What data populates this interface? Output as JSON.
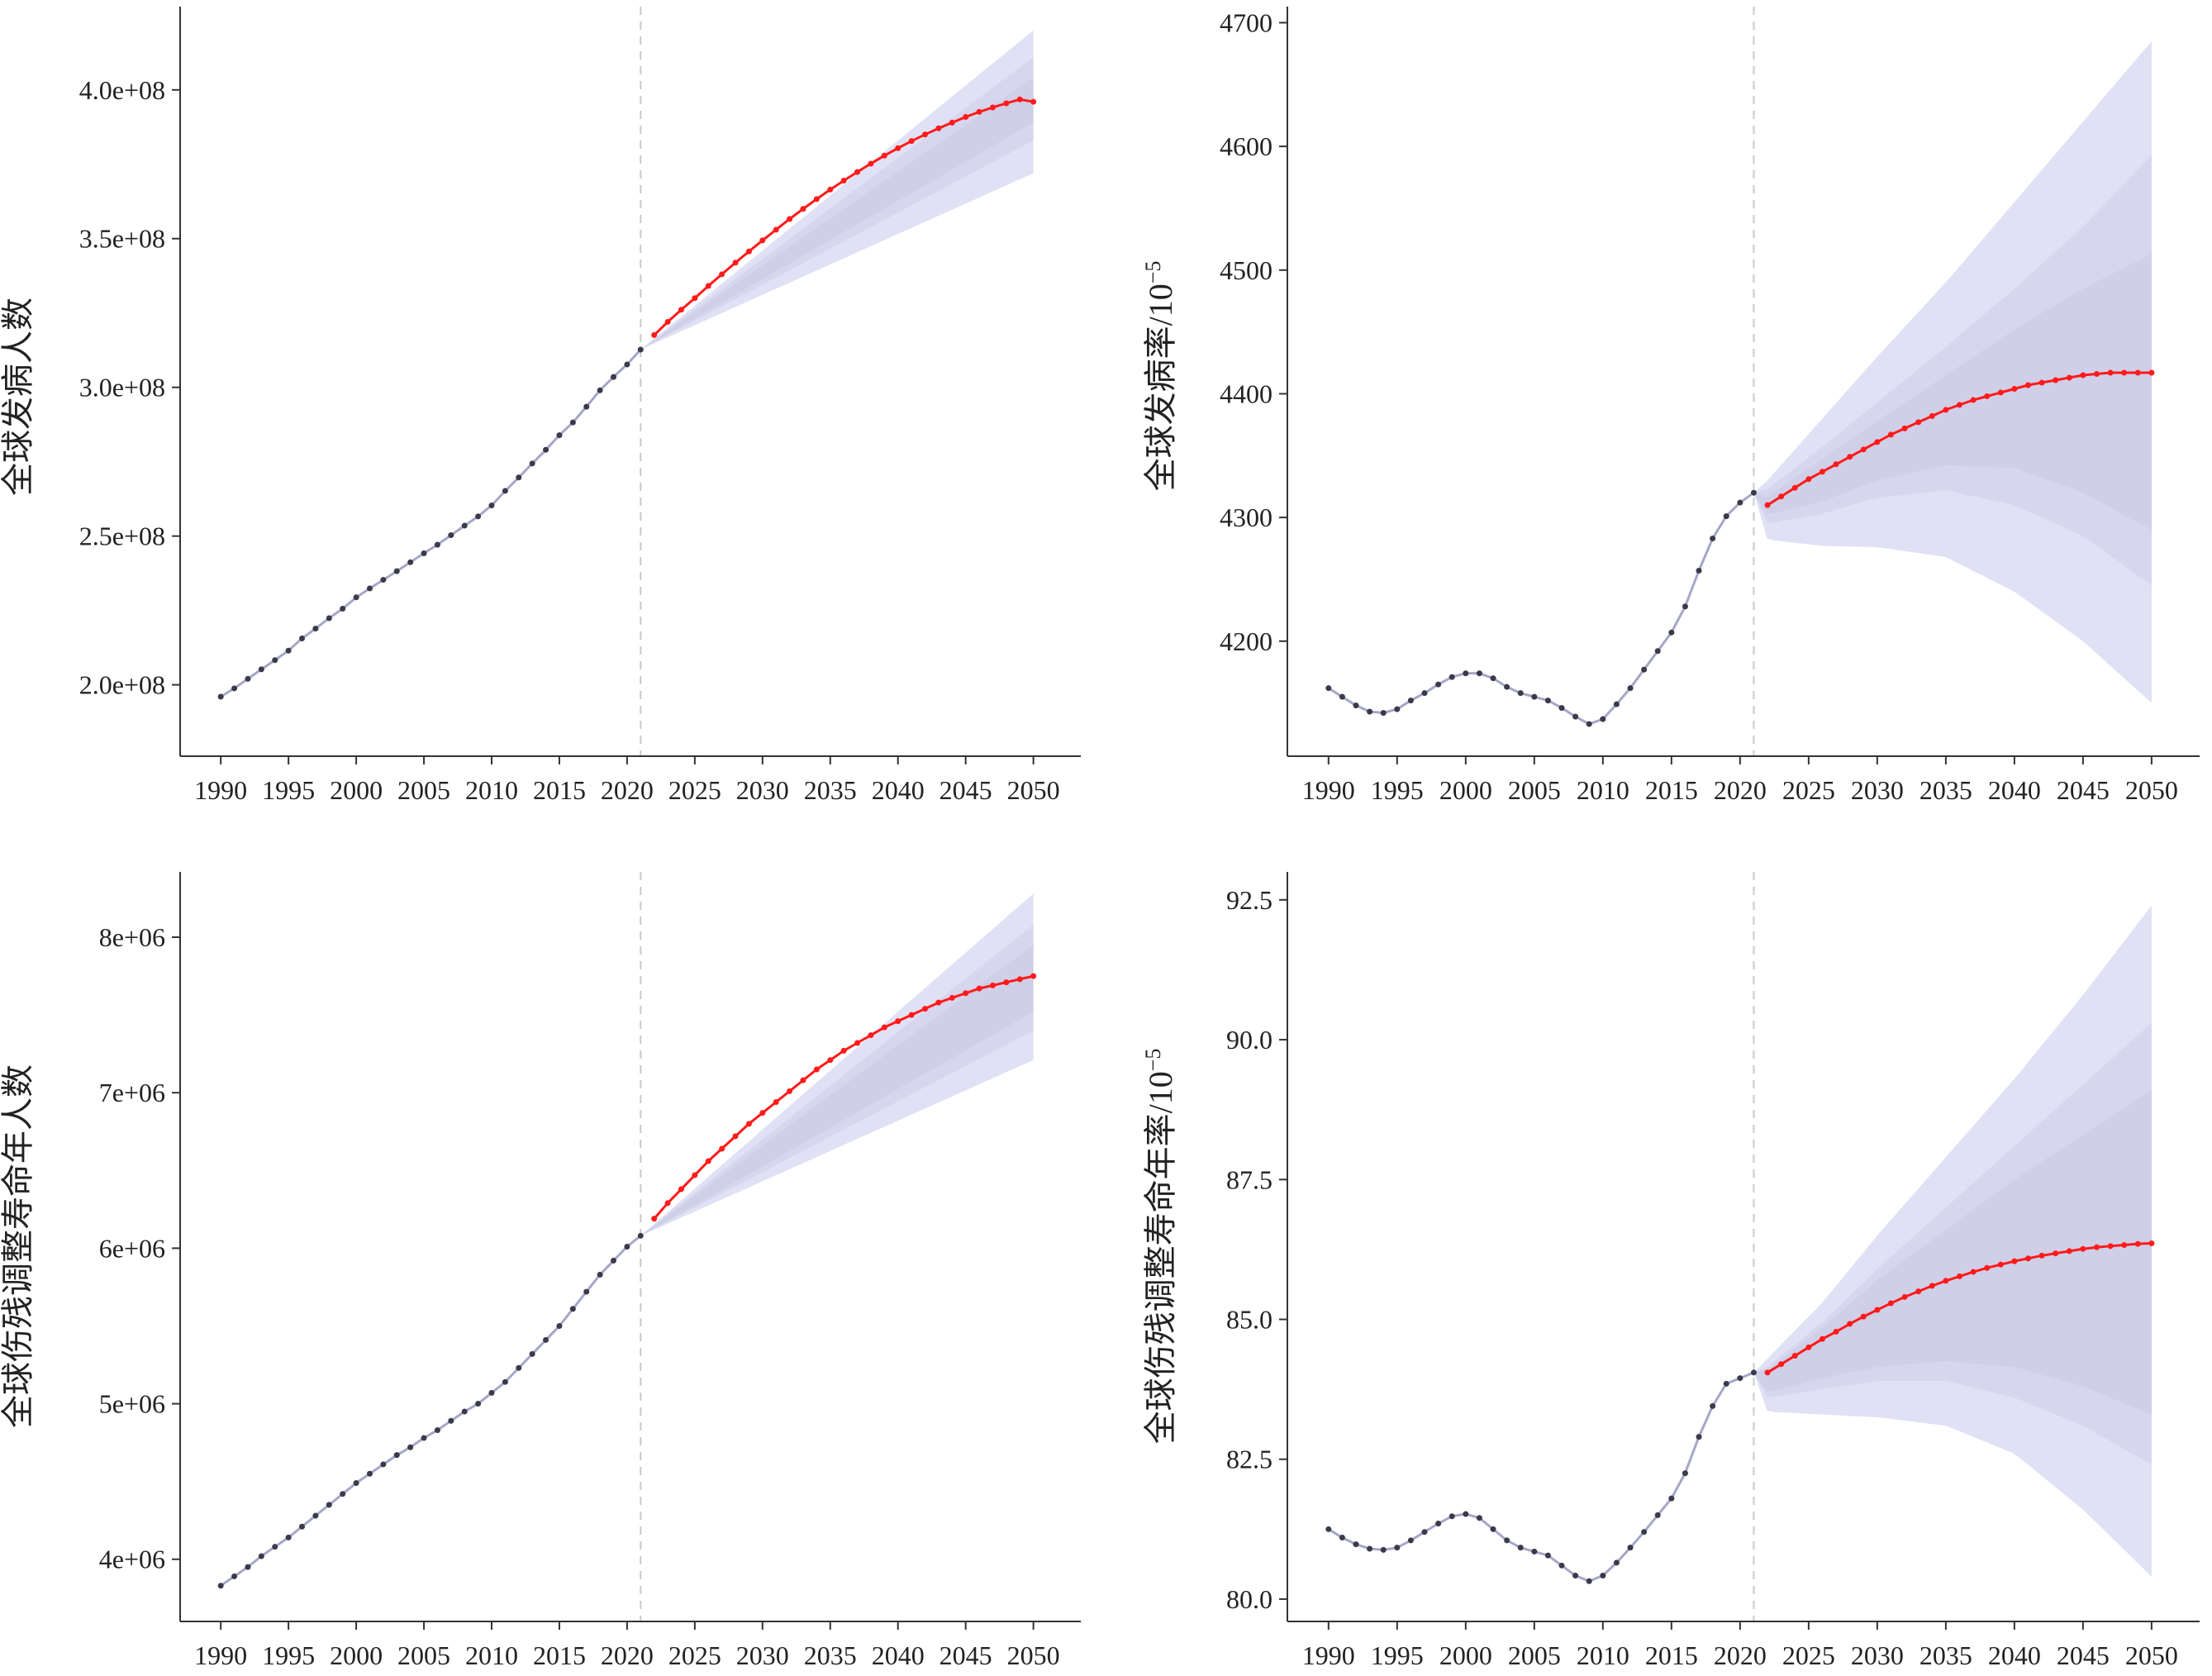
{
  "colors": {
    "history_point": "#3a3a4a",
    "history_line": "#a6a6c8",
    "prediction_point": "#ff1a1a",
    "prediction_line": "#ff1a1a",
    "band_outer": "#e1e1f5",
    "band_middle": "#d6d6ee",
    "band_inner": "#cfcfe8",
    "divider": "#c8c8d0"
  },
  "chart_data": [
    {
      "type": "line",
      "ylabel": "全球发病人数",
      "ylabel_unit": "",
      "x_ticks": [
        1990,
        1995,
        2000,
        2005,
        2010,
        2015,
        2020,
        2025,
        2030,
        2035,
        2040,
        2045,
        2050
      ],
      "xlim": [
        1987,
        2053.5
      ],
      "ylim": [
        176000000,
        428000000
      ],
      "y_ticks": [
        200000000,
        250000000,
        300000000,
        350000000,
        400000000
      ],
      "y_tick_labels": [
        "2.0e+08",
        "2.5e+08",
        "3.0e+08",
        "3.5e+08",
        "4.0e+08"
      ],
      "divider_x": 2021,
      "series": [
        {
          "role": "observed",
          "x": [
            1990,
            1991,
            1992,
            1993,
            1994,
            1995,
            1996,
            1997,
            1998,
            1999,
            2000,
            2001,
            2002,
            2003,
            2004,
            2005,
            2006,
            2007,
            2008,
            2009,
            2010,
            2011,
            2012,
            2013,
            2014,
            2015,
            2016,
            2017,
            2018,
            2019,
            2020,
            2021
          ],
          "values": [
            196000000,
            198800000,
            202000000,
            205200000,
            208300000,
            211500000,
            215600000,
            218900000,
            222400000,
            225600000,
            229400000,
            232400000,
            235300000,
            238200000,
            241200000,
            244200000,
            247100000,
            250300000,
            253500000,
            256600000,
            260300000,
            265200000,
            269700000,
            274400000,
            279000000,
            283900000,
            288200000,
            293500000,
            299000000,
            303500000,
            307700000,
            312700000
          ]
        },
        {
          "role": "predicted",
          "x": [
            2022,
            2023,
            2024,
            2025,
            2026,
            2027,
            2028,
            2029,
            2030,
            2031,
            2032,
            2033,
            2034,
            2035,
            2036,
            2037,
            2038,
            2039,
            2040,
            2041,
            2042,
            2043,
            2044,
            2045,
            2046,
            2047,
            2048,
            2049,
            2050
          ],
          "values": [
            317600000,
            322000000,
            326100000,
            330000000,
            334100000,
            338000000,
            341900000,
            345700000,
            349400000,
            353000000,
            356600000,
            360000000,
            363300000,
            366500000,
            369500000,
            372400000,
            375200000,
            377900000,
            380400000,
            382800000,
            385000000,
            387100000,
            389000000,
            390900000,
            392600000,
            394100000,
            395500000,
            396800000,
            396000000
          ],
          "band_x": [
            2021,
            2050
          ],
          "band_outer_upper": [
            312700000,
            420000000
          ],
          "band_outer_lower": [
            312700000,
            372000000
          ],
          "band_middle_upper": [
            312700000,
            411000000
          ],
          "band_middle_lower": [
            312700000,
            383000000
          ],
          "band_inner_upper": [
            312700000,
            404000000
          ],
          "band_inner_lower": [
            312700000,
            389000000
          ]
        }
      ]
    },
    {
      "type": "line",
      "ylabel": "全球发病率/10",
      "ylabel_unit": "−5",
      "x_ticks": [
        1990,
        1995,
        2000,
        2005,
        2010,
        2015,
        2020,
        2025,
        2030,
        2035,
        2040,
        2045,
        2050
      ],
      "xlim": [
        1987,
        2053.5
      ],
      "ylim": [
        4107,
        4713
      ],
      "y_ticks": [
        4200,
        4300,
        4400,
        4500,
        4600,
        4700
      ],
      "y_tick_labels": [
        "4200",
        "4300",
        "4400",
        "4500",
        "4600",
        "4700"
      ],
      "divider_x": 2021,
      "series": [
        {
          "role": "observed",
          "x": [
            1990,
            1991,
            1992,
            1993,
            1994,
            1995,
            1996,
            1997,
            1998,
            1999,
            2000,
            2001,
            2002,
            2003,
            2004,
            2005,
            2006,
            2007,
            2008,
            2009,
            2010,
            2011,
            2012,
            2013,
            2014,
            2015,
            2016,
            2017,
            2018,
            2019,
            2020,
            2021
          ],
          "values": [
            4162,
            4155,
            4148,
            4143,
            4142,
            4145,
            4152,
            4158,
            4165,
            4171,
            4174,
            4174,
            4170,
            4163,
            4158,
            4155,
            4152,
            4146,
            4139,
            4133,
            4137,
            4149,
            4162,
            4177,
            4192,
            4207,
            4228,
            4257,
            4283,
            4301,
            4312,
            4320
          ]
        },
        {
          "role": "predicted",
          "x": [
            2022,
            2023,
            2024,
            2025,
            2026,
            2027,
            2028,
            2029,
            2030,
            2031,
            2032,
            2033,
            2034,
            2035,
            2036,
            2037,
            2038,
            2039,
            2040,
            2041,
            2042,
            2043,
            2044,
            2045,
            2046,
            2047,
            2048,
            2049,
            2050
          ],
          "values": [
            4310,
            4317,
            4324,
            4331,
            4337,
            4343,
            4349,
            4355,
            4361,
            4367,
            4372,
            4377,
            4382,
            4387,
            4391,
            4395,
            4398,
            4401,
            4404,
            4407,
            4409,
            4411,
            4413,
            4415,
            4416,
            4417,
            4417,
            4417,
            4417
          ],
          "band_x": [
            2021,
            2022,
            2026,
            2030,
            2035,
            2040,
            2045,
            2050
          ],
          "band_outer_upper": [
            4320,
            4330,
            4380,
            4430,
            4490,
            4555,
            4620,
            4685
          ],
          "band_outer_lower": [
            4320,
            4282,
            4277,
            4276,
            4268,
            4240,
            4200,
            4150
          ],
          "band_middle_upper": [
            4320,
            4323,
            4357,
            4393,
            4438,
            4485,
            4535,
            4593
          ],
          "band_middle_lower": [
            4320,
            4295,
            4303,
            4316,
            4322,
            4310,
            4285,
            4245
          ],
          "band_inner_upper": [
            4320,
            4317,
            4347,
            4378,
            4415,
            4452,
            4485,
            4513
          ],
          "band_inner_lower": [
            4320,
            4302,
            4313,
            4330,
            4342,
            4340,
            4320,
            4290
          ]
        }
      ]
    },
    {
      "type": "line",
      "ylabel": "全球伤残调整寿命年人数",
      "ylabel_unit": "",
      "x_ticks": [
        1990,
        1995,
        2000,
        2005,
        2010,
        2015,
        2020,
        2025,
        2030,
        2035,
        2040,
        2045,
        2050
      ],
      "xlim": [
        1987,
        2053.5
      ],
      "ylim": [
        3600000,
        8420000
      ],
      "y_ticks": [
        4000000,
        5000000,
        6000000,
        7000000,
        8000000
      ],
      "y_tick_labels": [
        "4e+06",
        "5e+06",
        "6e+06",
        "7e+06",
        "8e+06"
      ],
      "divider_x": 2021,
      "series": [
        {
          "role": "observed",
          "x": [
            1990,
            1991,
            1992,
            1993,
            1994,
            1995,
            1996,
            1997,
            1998,
            1999,
            2000,
            2001,
            2002,
            2003,
            2004,
            2005,
            2006,
            2007,
            2008,
            2009,
            2010,
            2011,
            2012,
            2013,
            2014,
            2015,
            2016,
            2017,
            2018,
            2019,
            2020,
            2021
          ],
          "values": [
            3830000,
            3890000,
            3950000,
            4020000,
            4080000,
            4140000,
            4210000,
            4280000,
            4350000,
            4420000,
            4490000,
            4550000,
            4610000,
            4670000,
            4720000,
            4780000,
            4830000,
            4890000,
            4950000,
            5000000,
            5070000,
            5140000,
            5230000,
            5320000,
            5410000,
            5500000,
            5610000,
            5720000,
            5830000,
            5920000,
            6010000,
            6080000
          ]
        },
        {
          "role": "predicted",
          "x": [
            2022,
            2023,
            2024,
            2025,
            2026,
            2027,
            2028,
            2029,
            2030,
            2031,
            2032,
            2033,
            2034,
            2035,
            2036,
            2037,
            2038,
            2039,
            2040,
            2041,
            2042,
            2043,
            2044,
            2045,
            2046,
            2047,
            2048,
            2049,
            2050
          ],
          "values": [
            6190000,
            6290000,
            6380000,
            6470000,
            6560000,
            6640000,
            6720000,
            6800000,
            6870000,
            6940000,
            7010000,
            7080000,
            7150000,
            7210000,
            7270000,
            7320000,
            7370000,
            7420000,
            7460000,
            7500000,
            7540000,
            7580000,
            7610000,
            7640000,
            7670000,
            7690000,
            7710000,
            7730000,
            7750000
          ],
          "band_x": [
            2021,
            2050
          ],
          "band_outer_upper": [
            6080000,
            8280000
          ],
          "band_outer_lower": [
            6080000,
            7210000
          ],
          "band_middle_upper": [
            6080000,
            8080000
          ],
          "band_middle_lower": [
            6080000,
            7400000
          ],
          "band_inner_upper": [
            6080000,
            7950000
          ],
          "band_inner_lower": [
            6080000,
            7520000
          ]
        }
      ]
    },
    {
      "type": "line",
      "ylabel": "全球伤残调整寿命年率/10",
      "ylabel_unit": "−5",
      "x_ticks": [
        1990,
        1995,
        2000,
        2005,
        2010,
        2015,
        2020,
        2025,
        2030,
        2035,
        2040,
        2045,
        2050
      ],
      "xlim": [
        1987,
        2053.5
      ],
      "ylim": [
        79.6,
        93.0
      ],
      "y_ticks": [
        80.0,
        82.5,
        85.0,
        87.5,
        90.0,
        92.5
      ],
      "y_tick_labels": [
        "80.0",
        "82.5",
        "85.0",
        "87.5",
        "90.0",
        "92.5"
      ],
      "divider_x": 2021,
      "series": [
        {
          "role": "observed",
          "x": [
            1990,
            1991,
            1992,
            1993,
            1994,
            1995,
            1996,
            1997,
            1998,
            1999,
            2000,
            2001,
            2002,
            2003,
            2004,
            2005,
            2006,
            2007,
            2008,
            2009,
            2010,
            2011,
            2012,
            2013,
            2014,
            2015,
            2016,
            2017,
            2018,
            2019,
            2020,
            2021
          ],
          "values": [
            81.25,
            81.1,
            80.98,
            80.9,
            80.88,
            80.92,
            81.05,
            81.2,
            81.35,
            81.48,
            81.52,
            81.45,
            81.25,
            81.05,
            80.92,
            80.85,
            80.78,
            80.6,
            80.42,
            80.32,
            80.42,
            80.65,
            80.92,
            81.2,
            81.5,
            81.8,
            82.25,
            82.9,
            83.45,
            83.85,
            83.95,
            84.05
          ]
        },
        {
          "role": "predicted",
          "x": [
            2022,
            2023,
            2024,
            2025,
            2026,
            2027,
            2028,
            2029,
            2030,
            2031,
            2032,
            2033,
            2034,
            2035,
            2036,
            2037,
            2038,
            2039,
            2040,
            2041,
            2042,
            2043,
            2044,
            2045,
            2046,
            2047,
            2048,
            2049,
            2050
          ],
          "values": [
            84.05,
            84.2,
            84.35,
            84.5,
            84.65,
            84.78,
            84.92,
            85.05,
            85.17,
            85.29,
            85.4,
            85.5,
            85.6,
            85.69,
            85.77,
            85.85,
            85.92,
            85.98,
            86.04,
            86.09,
            86.14,
            86.18,
            86.22,
            86.26,
            86.29,
            86.31,
            86.33,
            86.35,
            86.36
          ],
          "band_x": [
            2021,
            2022,
            2026,
            2030,
            2035,
            2040,
            2045,
            2050
          ],
          "band_outer_upper": [
            84.05,
            84.3,
            85.3,
            86.5,
            87.9,
            89.3,
            90.8,
            92.4
          ],
          "band_outer_lower": [
            84.05,
            83.35,
            83.3,
            83.25,
            83.1,
            82.6,
            81.6,
            80.4
          ],
          "band_middle_upper": [
            84.05,
            84.15,
            84.95,
            85.9,
            87.0,
            88.1,
            89.2,
            90.3
          ],
          "band_middle_lower": [
            84.05,
            83.6,
            83.75,
            83.9,
            83.9,
            83.6,
            83.1,
            82.4
          ],
          "band_inner_upper": [
            84.05,
            84.1,
            84.85,
            85.7,
            86.6,
            87.5,
            88.3,
            89.1
          ],
          "band_inner_lower": [
            84.05,
            83.7,
            83.95,
            84.15,
            84.25,
            84.15,
            83.8,
            83.3
          ]
        }
      ]
    }
  ]
}
